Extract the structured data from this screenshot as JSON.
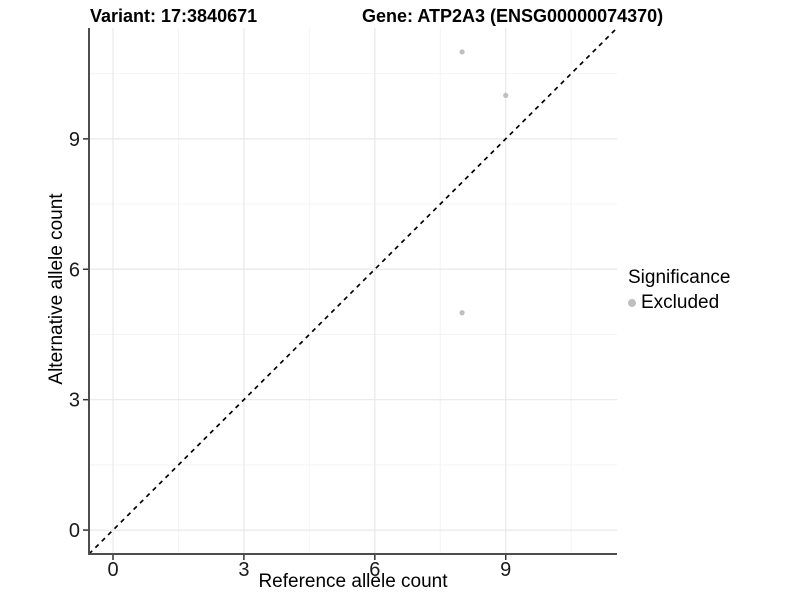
{
  "chart_data": {
    "type": "scatter",
    "title_left": "Variant: 17:3840671",
    "title_right": "Gene: ATP2A3 (ENSG00000074370)",
    "xlabel": "Reference allele count",
    "ylabel": "Alternative allele count",
    "xlim": [
      -0.55,
      11.55
    ],
    "ylim": [
      -0.55,
      11.55
    ],
    "x_ticks": [
      0,
      3,
      6,
      9
    ],
    "y_ticks": [
      0,
      3,
      6,
      9
    ],
    "x_minor_ticks": [
      1.5,
      4.5,
      7.5,
      10.5
    ],
    "y_minor_ticks": [
      1.5,
      4.5,
      7.5,
      10.5
    ],
    "grid": "major+minor",
    "series": [
      {
        "name": "Excluded",
        "color": "#bfbfbf",
        "points": [
          [
            8,
            11
          ],
          [
            9,
            10
          ],
          [
            8,
            5
          ]
        ]
      }
    ],
    "reference_line": {
      "kind": "identity",
      "slope": 1,
      "intercept": 0,
      "linetype": "dashed",
      "color": "#000000"
    },
    "legend": {
      "title": "Significance",
      "position": "right",
      "items": [
        {
          "label": "Excluded",
          "color": "#bfbfbf"
        }
      ]
    },
    "colors": {
      "major_grid": "#e8e8e8",
      "minor_grid": "#f4f4f4",
      "axis_line": "#4d4d4d",
      "tick_mark": "#333333",
      "tick_label": "#1a1a1a",
      "title": "#000000"
    }
  }
}
